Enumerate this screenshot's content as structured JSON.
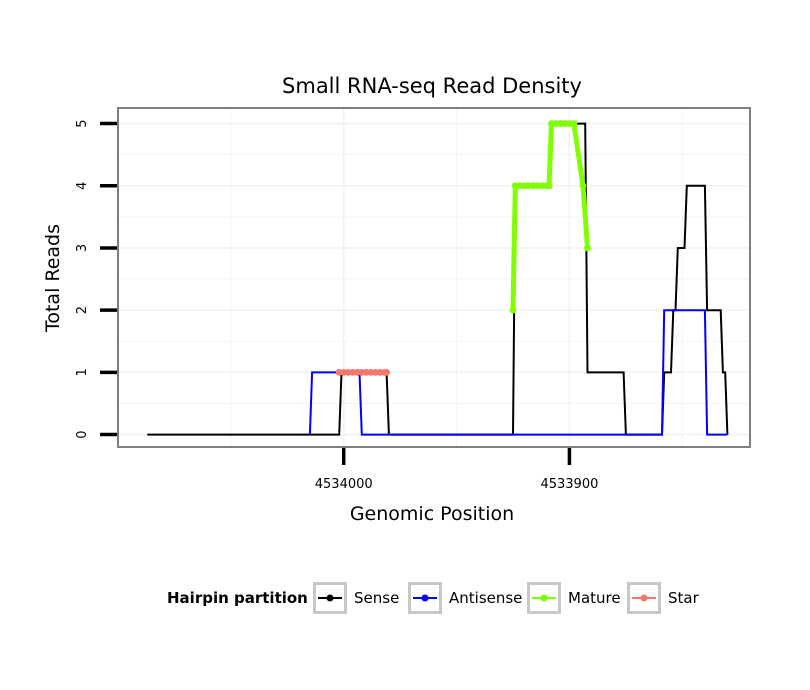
{
  "chart_data": {
    "type": "line",
    "title": "Small RNA-seq Read Density",
    "xlabel": "Genomic Position",
    "ylabel": "Total Reads",
    "x_reversed": true,
    "xlim": [
      4534100,
      4533820
    ],
    "ylim": [
      -0.2,
      5.25
    ],
    "x_ticks": [
      4534000,
      4533900
    ],
    "x_tick_labels": [
      "4534000",
      "4533900"
    ],
    "y_ticks": [
      0,
      1,
      2,
      3,
      4,
      5
    ],
    "y_tick_labels": [
      "0",
      "1",
      "2",
      "3",
      "4",
      "5"
    ],
    "grid": true,
    "series": [
      {
        "name": "Sense",
        "color": "#000000",
        "x": [
          4534087,
          4534002,
          4534001,
          4533981,
          4533980,
          4533925,
          4533924,
          4533909,
          4533908,
          4533893,
          4533892,
          4533876,
          4533875,
          4533859,
          4533858,
          4533855,
          4533854,
          4533853,
          4533852,
          4533849,
          4533848,
          4533840,
          4533839,
          4533833,
          4533832,
          4533831,
          4533830
        ],
        "y": [
          0,
          0,
          1,
          1,
          0,
          0,
          4,
          4,
          5,
          5,
          1,
          1,
          0,
          0,
          1,
          1,
          2,
          2,
          3,
          3,
          4,
          4,
          2,
          2,
          1,
          1,
          0
        ]
      },
      {
        "name": "Antisense",
        "color": "#0000ff",
        "x": [
          4534015,
          4534014,
          4533993,
          4533992,
          4533960,
          4533859,
          4533858,
          4533840,
          4533839,
          4533830
        ],
        "y": [
          0,
          1,
          1,
          0,
          0,
          0,
          2,
          2,
          0,
          0
        ]
      },
      {
        "name": "Mature",
        "color": "#80ff00",
        "x": [
          4533925,
          4533924,
          4533922,
          4533920,
          4533918,
          4533916,
          4533914,
          4533912,
          4533910,
          4533909,
          4533908,
          4533906,
          4533904,
          4533902,
          4533900,
          4533898,
          4533894,
          4533892
        ],
        "y": [
          2,
          4,
          4,
          4,
          4,
          4,
          4,
          4,
          4,
          4,
          5,
          5,
          5,
          5,
          5,
          5,
          4,
          3
        ]
      },
      {
        "name": "Star",
        "color": "#f8766d",
        "x": [
          4534002,
          4534000,
          4533998,
          4533996,
          4533994,
          4533992,
          4533990,
          4533988,
          4533986,
          4533984,
          4533982,
          4533981
        ],
        "y": [
          1,
          1,
          1,
          1,
          1,
          1,
          1,
          1,
          1,
          1,
          1,
          1
        ]
      }
    ],
    "legend": {
      "title": "Hairpin partition",
      "position": "bottom",
      "entries": [
        "Sense",
        "Antisense",
        "Mature",
        "Star"
      ]
    }
  }
}
